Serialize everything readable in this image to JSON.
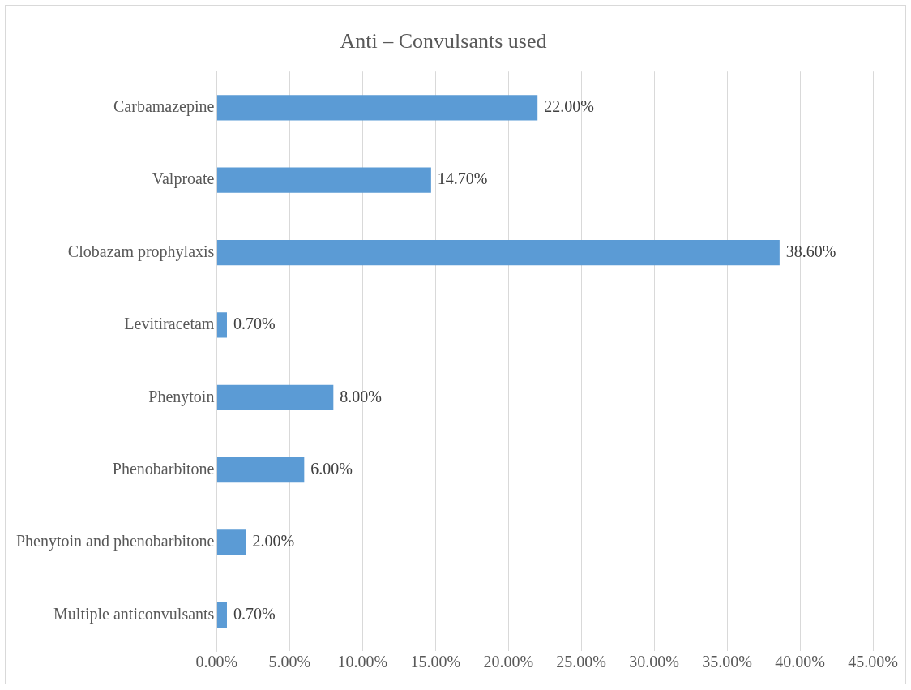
{
  "chart_data": {
    "type": "bar",
    "orientation": "horizontal",
    "title": "Anti – Convulsants used",
    "categories": [
      "Carbamazepine",
      "Valproate",
      "Clobazam prophylaxis",
      "Levitiracetam",
      "Phenytoin",
      "Phenobarbitone",
      "Phenytoin and phenobarbitone",
      "Multiple anticonvulsants"
    ],
    "values": [
      22,
      14.7,
      38.6,
      0.7,
      8,
      6,
      2,
      0.7
    ],
    "value_labels": [
      "22.00%",
      "14.70%",
      "38.60%",
      "0.70%",
      "8.00%",
      "6.00%",
      "2.00%",
      "0.70%"
    ],
    "color": "#5b9bd5",
    "xlim": [
      0,
      45
    ],
    "xticks": [
      {
        "value": 0,
        "label": "0.00%"
      },
      {
        "value": 5,
        "label": "5.00%"
      },
      {
        "value": 10,
        "label": "10.00%"
      },
      {
        "value": 15,
        "label": "15.00%"
      },
      {
        "value": 20,
        "label": "20.00%"
      },
      {
        "value": 25,
        "label": "25.00%"
      },
      {
        "value": 30,
        "label": "30.00%"
      },
      {
        "value": 35,
        "label": "35.00%"
      },
      {
        "value": 40,
        "label": "40.00%"
      },
      {
        "value": 45,
        "label": "45.00%"
      }
    ],
    "grid": "x",
    "legend": false
  }
}
